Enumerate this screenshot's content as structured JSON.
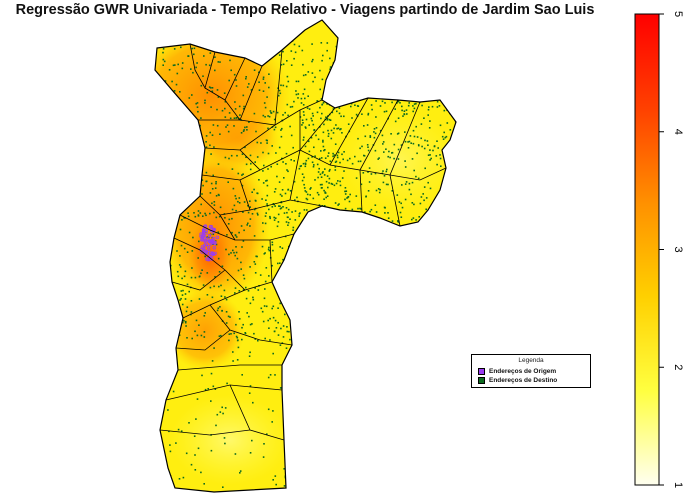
{
  "title": "Regressão GWR Univariada - Tempo Relativo - Viagens partindo de Jardim Sao Luis",
  "legend": {
    "title": "Legenda",
    "items": [
      {
        "label": "Endereços de Origem",
        "color": "#9a3cf0"
      },
      {
        "label": "Endereços de Destino",
        "color": "#0d6b1f"
      }
    ]
  },
  "colorbar": {
    "min": 1,
    "max": 5,
    "ticks": [
      "1",
      "2",
      "3",
      "4",
      "5"
    ],
    "colors": [
      "#fffff0",
      "#ffff40",
      "#ffd000",
      "#ff9000",
      "#ff4000",
      "#ff0000"
    ]
  },
  "colors": {
    "boundary": "#000000",
    "destination_points": "#0d6b1f",
    "origin_points": "#9a3cf0"
  }
}
